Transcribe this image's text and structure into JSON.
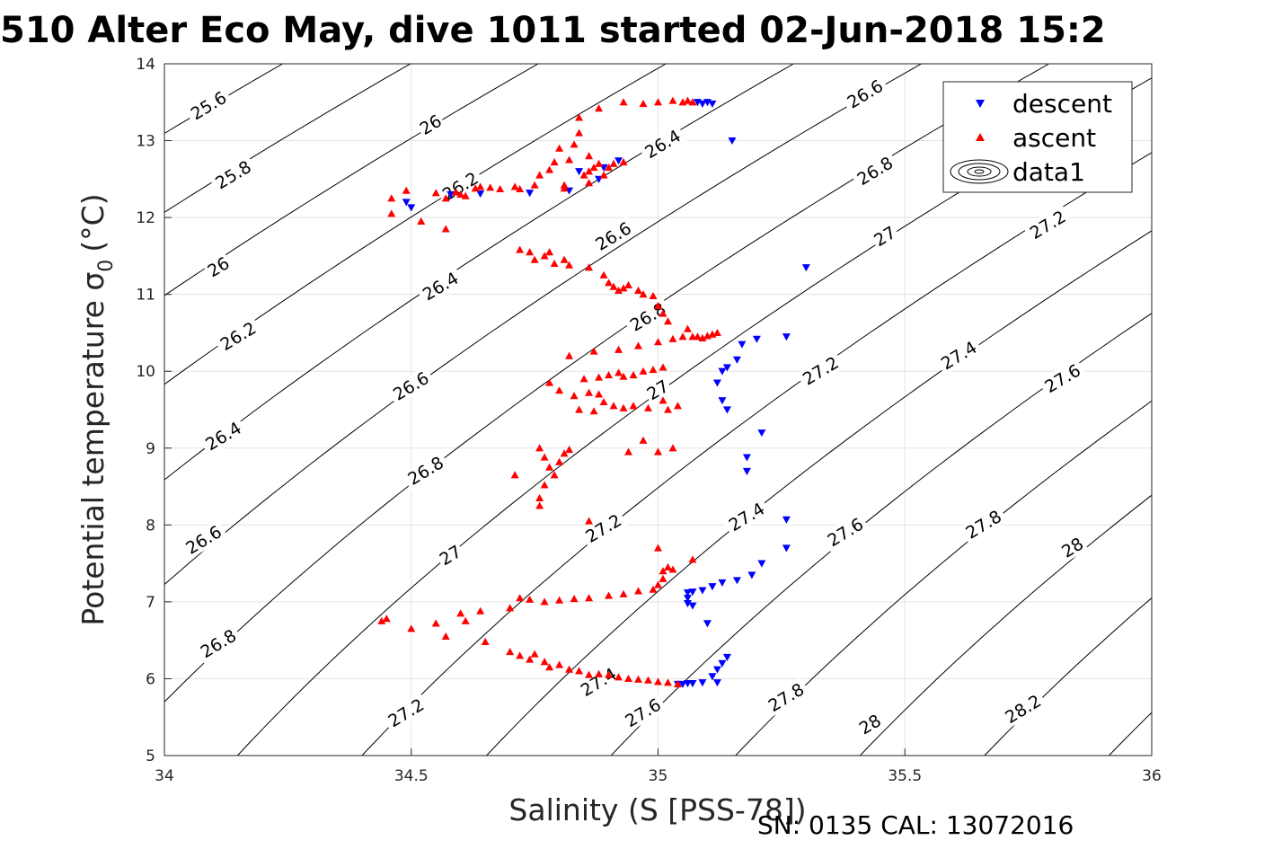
{
  "chart_data": {
    "type": "scatter",
    "title": "510 Alter Eco May, dive 1011 started 02-Jun-2018 15:2",
    "xlabel": "Salinity (S [PSS-78])",
    "ylabel": "Potential temperature σ",
    "ylabel_sub": "0",
    "ylabel_unit": "(°C)",
    "footer": "SN: 0135  CAL: 13072016",
    "xlim": [
      34,
      36
    ],
    "ylim": [
      5,
      14
    ],
    "xticks": [
      "34",
      "34.5",
      "35",
      "35.5",
      "36"
    ],
    "yticks": [
      "5",
      "6",
      "7",
      "8",
      "9",
      "10",
      "11",
      "12",
      "13",
      "14"
    ],
    "grid": true,
    "legend_position": "top-right",
    "legend": [
      "descent",
      "ascent",
      "data1"
    ],
    "series": [
      {
        "name": "descent",
        "marker": "triangle-down",
        "color": "#0000ff",
        "points": [
          [
            34.49,
            12.2
          ],
          [
            34.5,
            12.13
          ],
          [
            34.58,
            12.3
          ],
          [
            34.64,
            12.31
          ],
          [
            34.74,
            12.32
          ],
          [
            34.82,
            12.35
          ],
          [
            34.84,
            12.6
          ],
          [
            34.88,
            12.5
          ],
          [
            34.89,
            12.65
          ],
          [
            34.92,
            12.74
          ],
          [
            35.08,
            13.5
          ],
          [
            35.09,
            13.48
          ],
          [
            35.1,
            13.5
          ],
          [
            35.11,
            13.48
          ],
          [
            35.15,
            13.0
          ],
          [
            35.3,
            11.35
          ],
          [
            35.26,
            10.45
          ],
          [
            35.2,
            10.42
          ],
          [
            35.17,
            10.35
          ],
          [
            35.16,
            10.15
          ],
          [
            35.14,
            10.05
          ],
          [
            35.13,
            10.0
          ],
          [
            35.12,
            9.85
          ],
          [
            35.13,
            9.62
          ],
          [
            35.14,
            9.5
          ],
          [
            35.21,
            9.2
          ],
          [
            35.18,
            8.88
          ],
          [
            35.18,
            8.7
          ],
          [
            35.26,
            8.07
          ],
          [
            35.26,
            7.7
          ],
          [
            35.21,
            7.5
          ],
          [
            35.19,
            7.35
          ],
          [
            35.16,
            7.28
          ],
          [
            35.13,
            7.25
          ],
          [
            35.11,
            7.2
          ],
          [
            35.09,
            7.15
          ],
          [
            35.07,
            7.13
          ],
          [
            35.06,
            7.12
          ],
          [
            35.06,
            7.05
          ],
          [
            35.06,
            6.98
          ],
          [
            35.07,
            6.95
          ],
          [
            35.1,
            6.72
          ],
          [
            35.14,
            6.28
          ],
          [
            35.13,
            6.2
          ],
          [
            35.12,
            6.12
          ],
          [
            35.11,
            6.03
          ],
          [
            35.12,
            5.95
          ],
          [
            35.09,
            5.95
          ],
          [
            35.07,
            5.94
          ],
          [
            35.06,
            5.94
          ],
          [
            35.05,
            5.93
          ],
          [
            35.04,
            5.93
          ]
        ]
      },
      {
        "name": "ascent",
        "marker": "triangle-up",
        "color": "#ff0000",
        "points": [
          [
            34.46,
            12.25
          ],
          [
            34.46,
            12.05
          ],
          [
            34.49,
            12.35
          ],
          [
            34.52,
            11.95
          ],
          [
            34.55,
            12.32
          ],
          [
            34.57,
            12.25
          ],
          [
            34.59,
            12.33
          ],
          [
            34.6,
            12.3
          ],
          [
            34.61,
            12.28
          ],
          [
            34.63,
            12.38
          ],
          [
            34.64,
            12.4
          ],
          [
            34.66,
            12.39
          ],
          [
            34.68,
            12.37
          ],
          [
            34.71,
            12.4
          ],
          [
            34.72,
            12.37
          ],
          [
            34.75,
            12.42
          ],
          [
            34.76,
            12.55
          ],
          [
            34.78,
            12.62
          ],
          [
            34.79,
            12.72
          ],
          [
            34.8,
            12.9
          ],
          [
            34.81,
            12.42
          ],
          [
            34.81,
            12.38
          ],
          [
            34.82,
            12.75
          ],
          [
            34.83,
            12.95
          ],
          [
            34.84,
            13.1
          ],
          [
            34.84,
            13.3
          ],
          [
            34.85,
            12.55
          ],
          [
            34.86,
            12.6
          ],
          [
            34.86,
            12.8
          ],
          [
            34.86,
            12.45
          ],
          [
            34.87,
            12.65
          ],
          [
            34.88,
            12.7
          ],
          [
            34.89,
            12.55
          ],
          [
            34.9,
            12.65
          ],
          [
            34.91,
            12.7
          ],
          [
            34.93,
            12.72
          ],
          [
            34.88,
            13.42
          ],
          [
            34.93,
            13.5
          ],
          [
            34.97,
            13.48
          ],
          [
            35.0,
            13.5
          ],
          [
            35.03,
            13.52
          ],
          [
            35.05,
            13.5
          ],
          [
            35.06,
            13.52
          ],
          [
            35.07,
            13.5
          ],
          [
            34.57,
            11.85
          ],
          [
            34.72,
            11.58
          ],
          [
            34.74,
            11.55
          ],
          [
            34.75,
            11.45
          ],
          [
            34.77,
            11.5
          ],
          [
            34.78,
            11.55
          ],
          [
            34.79,
            11.4
          ],
          [
            34.81,
            11.45
          ],
          [
            34.82,
            11.38
          ],
          [
            34.86,
            11.35
          ],
          [
            34.89,
            11.25
          ],
          [
            34.9,
            11.15
          ],
          [
            34.91,
            11.1
          ],
          [
            34.92,
            11.05
          ],
          [
            34.93,
            11.08
          ],
          [
            34.94,
            11.12
          ],
          [
            34.96,
            11.05
          ],
          [
            34.97,
            11.0
          ],
          [
            34.99,
            10.98
          ],
          [
            35.0,
            10.85
          ],
          [
            35.01,
            10.75
          ],
          [
            35.02,
            10.65
          ],
          [
            35.03,
            10.42
          ],
          [
            35.05,
            10.45
          ],
          [
            35.07,
            10.45
          ],
          [
            35.08,
            10.45
          ],
          [
            35.09,
            10.43
          ],
          [
            35.1,
            10.46
          ],
          [
            35.11,
            10.48
          ],
          [
            35.12,
            10.5
          ],
          [
            35.06,
            10.55
          ],
          [
            35.0,
            10.38
          ],
          [
            34.96,
            10.33
          ],
          [
            34.92,
            10.28
          ],
          [
            34.87,
            10.26
          ],
          [
            34.82,
            10.2
          ],
          [
            34.85,
            9.9
          ],
          [
            34.88,
            9.92
          ],
          [
            34.9,
            9.95
          ],
          [
            34.92,
            9.98
          ],
          [
            34.93,
            9.93
          ],
          [
            34.95,
            9.95
          ],
          [
            34.97,
            10.0
          ],
          [
            34.99,
            10.02
          ],
          [
            35.01,
            10.05
          ],
          [
            34.78,
            9.85
          ],
          [
            34.8,
            9.75
          ],
          [
            34.83,
            9.68
          ],
          [
            34.86,
            9.72
          ],
          [
            34.88,
            9.7
          ],
          [
            34.89,
            9.6
          ],
          [
            34.91,
            9.55
          ],
          [
            34.93,
            9.52
          ],
          [
            34.95,
            9.55
          ],
          [
            34.98,
            9.52
          ],
          [
            35.01,
            9.62
          ],
          [
            35.02,
            9.5
          ],
          [
            35.04,
            9.55
          ],
          [
            34.84,
            9.5
          ],
          [
            34.87,
            9.48
          ],
          [
            34.76,
            9.0
          ],
          [
            34.77,
            8.88
          ],
          [
            34.78,
            8.75
          ],
          [
            34.79,
            8.65
          ],
          [
            34.8,
            8.82
          ],
          [
            34.81,
            8.93
          ],
          [
            34.82,
            8.98
          ],
          [
            34.77,
            8.52
          ],
          [
            34.76,
            8.35
          ],
          [
            34.76,
            8.25
          ],
          [
            34.71,
            8.65
          ],
          [
            34.94,
            8.95
          ],
          [
            34.97,
            9.1
          ],
          [
            35.0,
            8.95
          ],
          [
            35.03,
            9.0
          ],
          [
            34.86,
            8.05
          ],
          [
            34.45,
            6.78
          ],
          [
            34.44,
            6.75
          ],
          [
            34.5,
            6.65
          ],
          [
            34.55,
            6.72
          ],
          [
            34.57,
            6.55
          ],
          [
            34.6,
            6.85
          ],
          [
            34.61,
            6.75
          ],
          [
            34.64,
            6.88
          ],
          [
            34.65,
            6.48
          ],
          [
            34.7,
            6.92
          ],
          [
            34.72,
            7.05
          ],
          [
            34.74,
            7.03
          ],
          [
            34.77,
            7.0
          ],
          [
            34.8,
            7.02
          ],
          [
            34.83,
            7.04
          ],
          [
            34.86,
            7.05
          ],
          [
            34.9,
            7.08
          ],
          [
            34.93,
            7.1
          ],
          [
            34.96,
            7.14
          ],
          [
            34.99,
            7.16
          ],
          [
            35.0,
            7.22
          ],
          [
            35.01,
            7.3
          ],
          [
            35.01,
            7.4
          ],
          [
            35.02,
            7.45
          ],
          [
            35.03,
            7.42
          ],
          [
            35.0,
            7.7
          ],
          [
            35.07,
            7.55
          ],
          [
            34.7,
            6.35
          ],
          [
            34.72,
            6.3
          ],
          [
            34.74,
            6.25
          ],
          [
            34.75,
            6.32
          ],
          [
            34.77,
            6.22
          ],
          [
            34.78,
            6.15
          ],
          [
            34.8,
            6.18
          ],
          [
            34.82,
            6.12
          ],
          [
            34.84,
            6.1
          ],
          [
            34.86,
            6.05
          ],
          [
            34.88,
            6.06
          ],
          [
            34.9,
            6.05
          ],
          [
            34.92,
            6.02
          ],
          [
            34.94,
            6.0
          ],
          [
            34.96,
            5.99
          ],
          [
            34.98,
            5.98
          ],
          [
            35.0,
            5.96
          ],
          [
            35.02,
            5.95
          ],
          [
            35.04,
            5.93
          ]
        ]
      }
    ],
    "contour_levels": [
      "25.6",
      "25.8",
      "26",
      "26.2",
      "26.4",
      "26.6",
      "26.8",
      "27",
      "27.2",
      "27.4",
      "27.6",
      "27.8",
      "28",
      "28.2"
    ],
    "contour_label_positions": [
      {
        "text": "25.6",
        "x": 34.09,
        "y": 13.45
      },
      {
        "text": "25.8",
        "x": 34.14,
        "y": 12.55
      },
      {
        "text": "26",
        "x": 34.11,
        "y": 11.35
      },
      {
        "text": "26.2",
        "x": 34.15,
        "y": 10.45
      },
      {
        "text": "26.4",
        "x": 34.12,
        "y": 9.15
      },
      {
        "text": "26.6",
        "x": 34.08,
        "y": 7.8
      },
      {
        "text": "26.8",
        "x": 34.11,
        "y": 6.45
      },
      {
        "text": "26",
        "x": 34.54,
        "y": 13.2
      },
      {
        "text": "26.2",
        "x": 34.6,
        "y": 12.4
      },
      {
        "text": "26.4",
        "x": 34.56,
        "y": 11.1
      },
      {
        "text": "26.6",
        "x": 34.5,
        "y": 9.8
      },
      {
        "text": "26.8",
        "x": 34.53,
        "y": 8.7
      },
      {
        "text": "27",
        "x": 34.58,
        "y": 7.6
      },
      {
        "text": "27.2",
        "x": 34.49,
        "y": 5.55
      },
      {
        "text": "26.4",
        "x": 35.01,
        "y": 12.95
      },
      {
        "text": "26.6",
        "x": 34.91,
        "y": 11.75
      },
      {
        "text": "26.8",
        "x": 34.98,
        "y": 10.7
      },
      {
        "text": "27",
        "x": 35.0,
        "y": 9.75
      },
      {
        "text": "27.2",
        "x": 34.89,
        "y": 7.95
      },
      {
        "text": "27.4",
        "x": 34.88,
        "y": 5.95
      },
      {
        "text": "27.6",
        "x": 34.97,
        "y": 5.55
      },
      {
        "text": "26.6",
        "x": 35.42,
        "y": 13.6
      },
      {
        "text": "26.8",
        "x": 35.44,
        "y": 12.6
      },
      {
        "text": "27",
        "x": 35.46,
        "y": 11.75
      },
      {
        "text": "27.2",
        "x": 35.33,
        "y": 10.0
      },
      {
        "text": "27.4",
        "x": 35.18,
        "y": 8.1
      },
      {
        "text": "27.8",
        "x": 35.26,
        "y": 5.75
      },
      {
        "text": "27.2",
        "x": 35.79,
        "y": 11.9
      },
      {
        "text": "27.4",
        "x": 35.61,
        "y": 10.2
      },
      {
        "text": "27.6",
        "x": 35.82,
        "y": 9.9
      },
      {
        "text": "27.6",
        "x": 35.38,
        "y": 7.9
      },
      {
        "text": "27.8",
        "x": 35.66,
        "y": 8.0
      },
      {
        "text": "28",
        "x": 35.84,
        "y": 7.7
      },
      {
        "text": "28",
        "x": 35.43,
        "y": 5.4
      },
      {
        "text": "28.2",
        "x": 35.74,
        "y": 5.6
      }
    ]
  }
}
